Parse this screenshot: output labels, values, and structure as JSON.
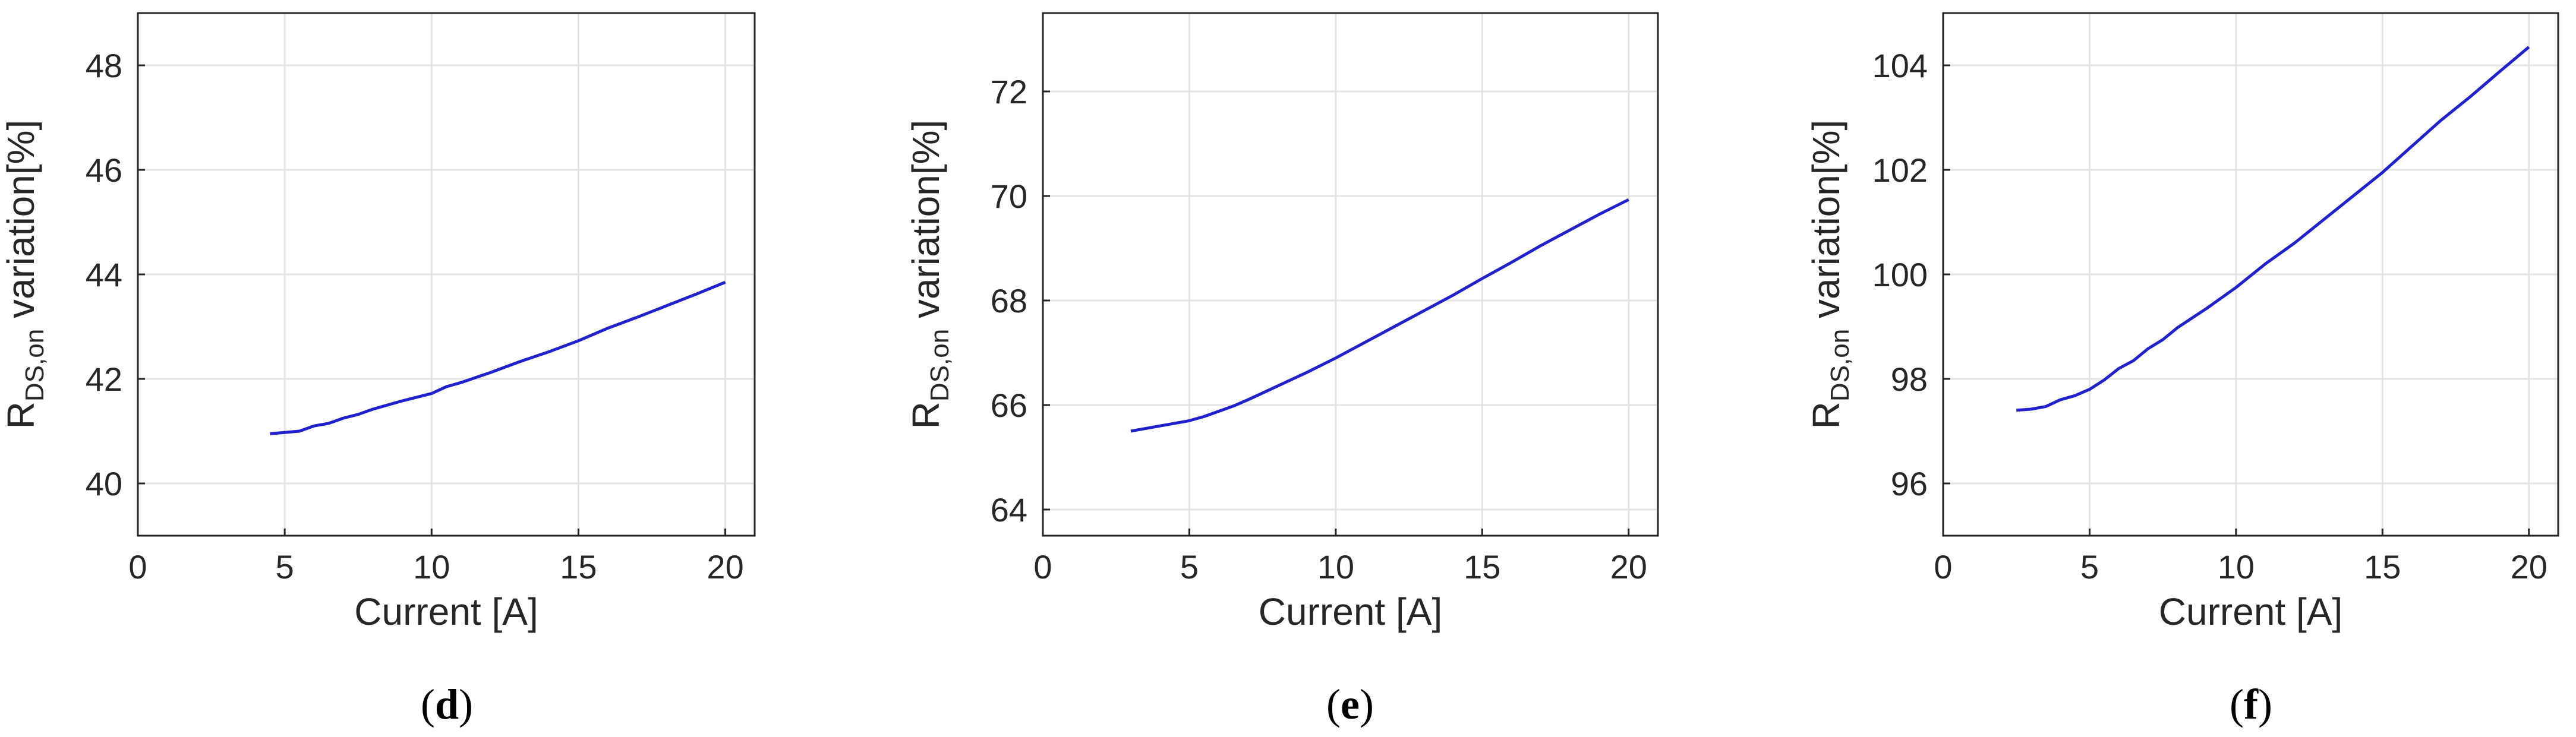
{
  "figure": {
    "panels": [
      {
        "label_open": "(",
        "label_letter": "d",
        "label_close": ")"
      },
      {
        "label_open": "(",
        "label_letter": "e",
        "label_close": ")"
      },
      {
        "label_open": "(",
        "label_letter": "f",
        "label_close": ")"
      }
    ]
  },
  "colors": {
    "line": "#2020d0",
    "grid": "#e3e3e3",
    "axis": "#262626"
  },
  "chart_data": [
    {
      "type": "line",
      "panel": "d",
      "xlabel": "Current [A]",
      "ylabel_main": "R",
      "ylabel_sub": "DS,on",
      "ylabel_rest": " variation[%]",
      "xlim": [
        0,
        21
      ],
      "ylim": [
        39,
        49
      ],
      "xticks": [
        0,
        5,
        10,
        15,
        20
      ],
      "yticks": [
        40,
        42,
        44,
        46,
        48
      ],
      "grid": true,
      "series": [
        {
          "x": [
            4.5,
            5.5,
            6.0,
            6.5,
            7.0,
            7.5,
            8.0,
            8.5,
            9.0,
            9.5,
            10.0,
            10.5,
            11.0,
            12.0,
            13.0,
            14.0,
            15.0,
            16.0,
            17.0,
            18.0,
            19.0,
            20.0
          ],
          "y": [
            40.95,
            41.0,
            41.1,
            41.15,
            41.25,
            41.32,
            41.42,
            41.5,
            41.58,
            41.65,
            41.72,
            41.85,
            41.93,
            42.12,
            42.33,
            42.52,
            42.73,
            42.97,
            43.18,
            43.4,
            43.62,
            43.85
          ]
        }
      ]
    },
    {
      "type": "line",
      "panel": "e",
      "xlabel": "Current [A]",
      "ylabel_main": "R",
      "ylabel_sub": "DS,on",
      "ylabel_rest": " variation[%]",
      "xlim": [
        0,
        21
      ],
      "ylim": [
        63.5,
        73.5
      ],
      "xticks": [
        0,
        5,
        10,
        15,
        20
      ],
      "yticks": [
        64,
        66,
        68,
        70,
        72
      ],
      "grid": true,
      "series": [
        {
          "x": [
            3.0,
            3.5,
            4.0,
            4.5,
            5.0,
            5.5,
            6.0,
            6.5,
            7.0,
            7.5,
            8.0,
            9.0,
            10.0,
            11.0,
            12.0,
            13.0,
            14.0,
            15.0,
            16.0,
            17.0,
            18.0,
            19.0,
            20.0
          ],
          "y": [
            65.5,
            65.55,
            65.6,
            65.65,
            65.7,
            65.78,
            65.88,
            65.98,
            66.1,
            66.23,
            66.36,
            66.62,
            66.9,
            67.2,
            67.5,
            67.8,
            68.1,
            68.42,
            68.73,
            69.05,
            69.35,
            69.65,
            69.93
          ]
        }
      ]
    },
    {
      "type": "line",
      "panel": "f",
      "xlabel": "Current [A]",
      "ylabel_main": "R",
      "ylabel_sub": "DS,on",
      "ylabel_rest": " variation[%]",
      "xlim": [
        0,
        21
      ],
      "ylim": [
        95,
        105
      ],
      "xticks": [
        0,
        5,
        10,
        15,
        20
      ],
      "yticks": [
        96,
        98,
        100,
        102,
        104
      ],
      "grid": true,
      "series": [
        {
          "x": [
            2.5,
            3.0,
            3.5,
            4.0,
            4.5,
            5.0,
            5.5,
            6.0,
            6.5,
            7.0,
            7.5,
            8.0,
            9.0,
            10.0,
            11.0,
            12.0,
            13.0,
            14.0,
            15.0,
            16.0,
            17.0,
            18.0,
            19.0,
            20.0
          ],
          "y": [
            97.4,
            97.42,
            97.47,
            97.6,
            97.68,
            97.8,
            97.98,
            98.2,
            98.35,
            98.58,
            98.75,
            98.98,
            99.35,
            99.75,
            100.2,
            100.6,
            101.05,
            101.5,
            101.95,
            102.45,
            102.95,
            103.4,
            103.88,
            104.35
          ]
        }
      ]
    }
  ]
}
